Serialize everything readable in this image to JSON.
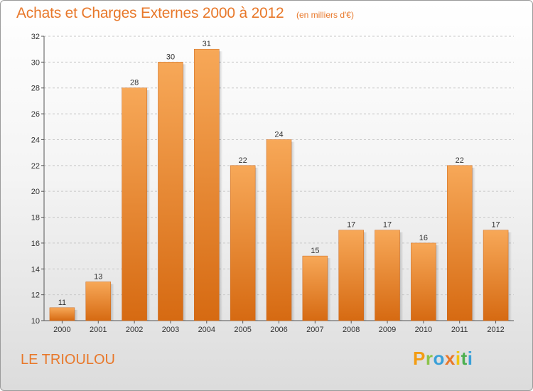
{
  "title": "Achats et Charges Externes 2000 à 2012",
  "subtitle": "(en milliers d'€)",
  "footer": {
    "town": "LE TRIOULOU",
    "logo": {
      "letters": [
        "P",
        "r",
        "o",
        "x",
        "i",
        "t",
        "i"
      ],
      "colors": [
        "#f39c12",
        "#8bc34a",
        "#3aa0d8",
        "#e8782a",
        "#f1c40f",
        "#4caf50",
        "#3aa0d8"
      ]
    }
  },
  "colors": {
    "accent": "#e8782a",
    "bar_top": "#f7a858",
    "bar_bottom": "#d66a12"
  },
  "chart_data": {
    "type": "bar",
    "categories": [
      "2000",
      "2001",
      "2002",
      "2003",
      "2004",
      "2005",
      "2006",
      "2007",
      "2008",
      "2009",
      "2010",
      "2011",
      "2012"
    ],
    "values": [
      11,
      13,
      28,
      30,
      31,
      22,
      24,
      15,
      17,
      17,
      16,
      22,
      17
    ],
    "title": "Achats et Charges Externes 2000 à 2012",
    "xlabel": "",
    "ylabel": "",
    "ylim": [
      10,
      32
    ],
    "yticks": [
      10,
      12,
      14,
      16,
      18,
      20,
      22,
      24,
      26,
      28,
      30,
      32
    ],
    "grid": true,
    "data_labels": true
  }
}
